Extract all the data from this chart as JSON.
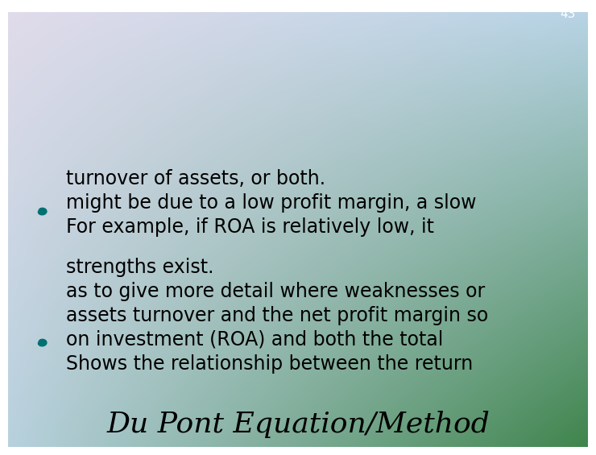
{
  "title": "Du Pont Equation/Method",
  "title_fontsize": 26,
  "title_style": "italic",
  "title_font": "DejaVu Serif",
  "title_color": "#000000",
  "bullet_color": "#007070",
  "text_color": "#000000",
  "text_fontsize": 17,
  "page_number": "43",
  "page_num_color": "#ffffff",
  "page_num_fontsize": 11,
  "bullet1_lines": [
    "Shows the relationship between the return",
    "on investment (ROA) and both the total",
    "assets turnover and the net profit margin so",
    "as to give more detail where weaknesses or",
    "strengths exist."
  ],
  "bullet2_lines": [
    "For example, if ROA is relatively low, it",
    "might be due to a low profit margin, a slow",
    "turnover of assets, or both."
  ],
  "bg_tl": [
    0.88,
    0.86,
    0.92
  ],
  "bg_tr": [
    0.72,
    0.83,
    0.9
  ],
  "bg_bl": [
    0.72,
    0.82,
    0.87
  ],
  "bg_br": [
    0.25,
    0.52,
    0.3
  ]
}
